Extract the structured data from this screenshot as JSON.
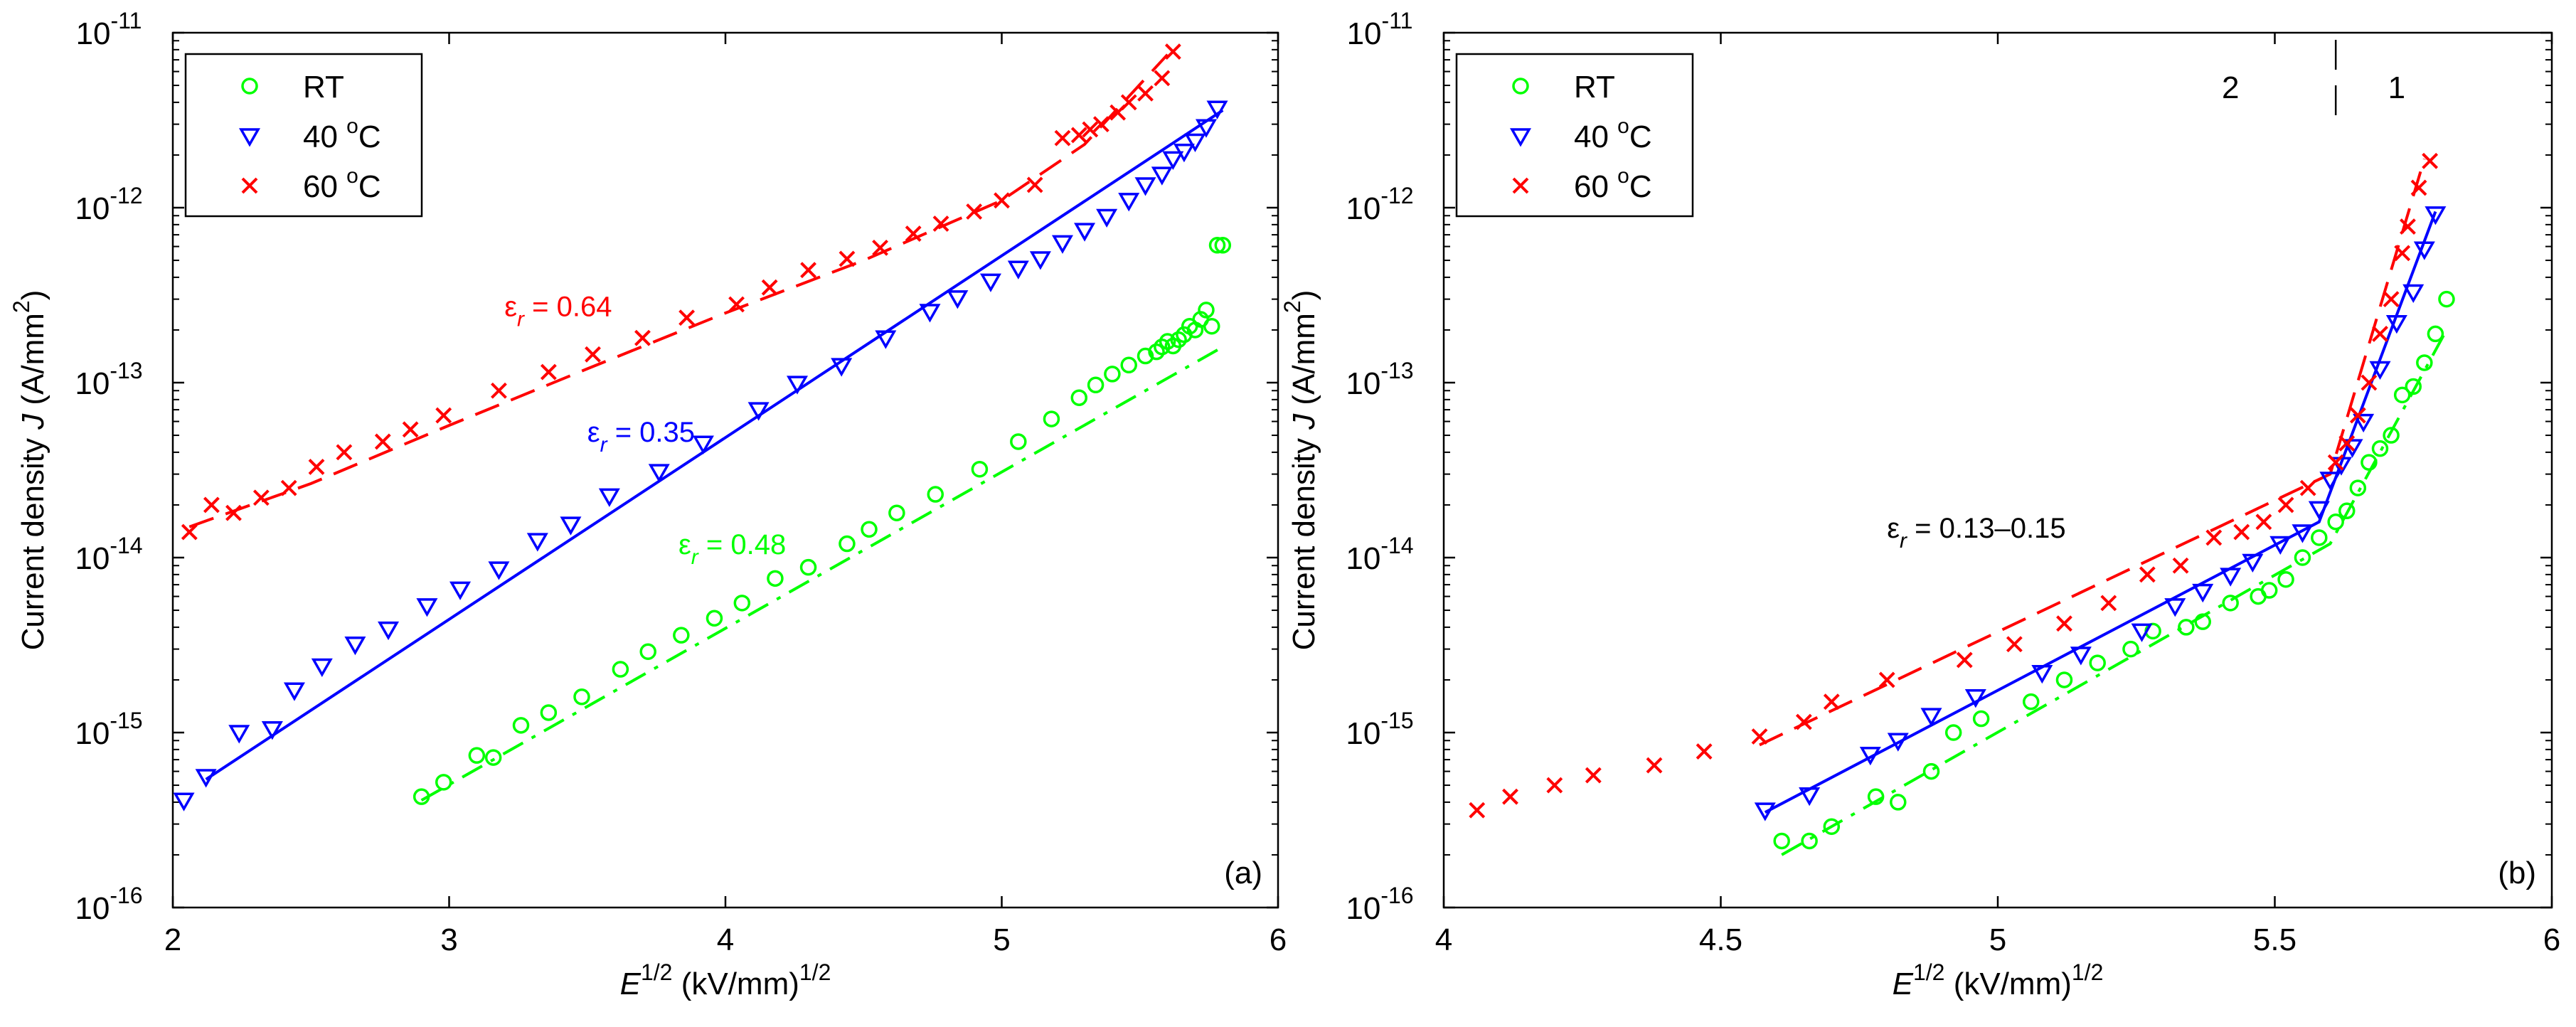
{
  "chart_data": [
    {
      "id": "a",
      "type": "scatter",
      "panel_label": "(a)",
      "xlabel": {
        "main": "E",
        "sup1": "1/2",
        "rest": " (kV/mm)",
        "sup2": "1/2"
      },
      "ylabel": {
        "main": "Current density ",
        "italic": "J",
        "rest": " (A/mm",
        "sup": "2",
        "end": ")"
      },
      "xlim": [
        2,
        6
      ],
      "ylim_log10": [
        -16,
        -11
      ],
      "x_ticks": [
        "2",
        "3",
        "4",
        "5",
        "6"
      ],
      "y_ticks": [
        {
          "base": "10",
          "exp": "-16"
        },
        {
          "base": "10",
          "exp": "-15"
        },
        {
          "base": "10",
          "exp": "-14"
        },
        {
          "base": "10",
          "exp": "-13"
        },
        {
          "base": "10",
          "exp": "-12"
        },
        {
          "base": "10",
          "exp": "-11"
        }
      ],
      "legend": {
        "position": "top-left",
        "entries": [
          {
            "label": "RT",
            "sup": "",
            "suffix": ""
          },
          {
            "label": "40 ",
            "sup": "o",
            "suffix": "C"
          },
          {
            "label": "60 ",
            "sup": "o",
            "suffix": "C"
          }
        ]
      },
      "series": [
        {
          "name": "RT",
          "color": "#00ff00",
          "marker": "circle",
          "x": [
            2.9,
            2.98,
            3.1,
            3.16,
            3.26,
            3.36,
            3.48,
            3.62,
            3.72,
            3.84,
            3.96,
            4.06,
            4.18,
            4.3,
            4.44,
            4.52,
            4.62,
            4.76,
            4.92,
            5.06,
            5.18,
            5.28,
            5.34,
            5.4,
            5.46,
            5.52,
            5.56,
            5.58,
            5.6,
            5.62,
            5.64,
            5.66,
            5.68,
            5.7,
            5.72,
            5.74,
            5.76,
            5.78,
            5.8
          ],
          "y": [
            4.3e-16,
            5.2e-16,
            7.4e-16,
            7.2e-16,
            1.1e-15,
            1.3e-15,
            1.6e-15,
            2.3e-15,
            2.9e-15,
            3.6e-15,
            4.5e-15,
            5.5e-15,
            7.6e-15,
            8.8e-15,
            1.2e-14,
            1.45e-14,
            1.8e-14,
            2.3e-14,
            3.2e-14,
            4.6e-14,
            6.2e-14,
            8.2e-14,
            9.7e-14,
            1.12e-13,
            1.26e-13,
            1.42e-13,
            1.5e-13,
            1.6e-13,
            1.72e-13,
            1.62e-13,
            1.76e-13,
            1.88e-13,
            2.1e-13,
            2e-13,
            2.3e-13,
            2.6e-13,
            2.1e-13,
            6.1e-13,
            6.1e-13
          ]
        },
        {
          "name": "40 oC",
          "color": "#0000ff",
          "marker": "triangle",
          "x": [
            2.04,
            2.12,
            2.24,
            2.36,
            2.44,
            2.54,
            2.66,
            2.78,
            2.92,
            3.04,
            3.18,
            3.32,
            3.44,
            3.58,
            3.76,
            3.92,
            4.12,
            4.26,
            4.42,
            4.58,
            4.74,
            4.84,
            4.96,
            5.06,
            5.14,
            5.22,
            5.3,
            5.38,
            5.46,
            5.52,
            5.58,
            5.62,
            5.66,
            5.7,
            5.74,
            5.78
          ],
          "y": [
            4.1e-16,
            5.6e-16,
            1e-15,
            1.05e-15,
            1.75e-15,
            2.4e-15,
            3.2e-15,
            3.9e-15,
            5.3e-15,
            6.6e-15,
            8.6e-15,
            1.25e-14,
            1.55e-14,
            2.25e-14,
            3.1e-14,
            4.5e-14,
            7e-14,
            9.9e-14,
            1.25e-13,
            1.8e-13,
            2.55e-13,
            3.05e-13,
            3.8e-13,
            4.5e-13,
            5.1e-13,
            6.3e-13,
            7.4e-13,
            8.9e-13,
            1.1e-12,
            1.35e-12,
            1.55e-12,
            1.9e-12,
            2.1e-12,
            2.4e-12,
            2.9e-12,
            3.7e-12
          ]
        },
        {
          "name": "60 oC",
          "color": "#ff0000",
          "marker": "x",
          "x": [
            2.06,
            2.14,
            2.22,
            2.32,
            2.42,
            2.52,
            2.62,
            2.76,
            2.86,
            2.98,
            3.18,
            3.36,
            3.52,
            3.7,
            3.86,
            4.04,
            4.16,
            4.3,
            4.44,
            4.56,
            4.68,
            4.78,
            4.9,
            5.0,
            5.12,
            5.22,
            5.28,
            5.32,
            5.36,
            5.42,
            5.46,
            5.52,
            5.58,
            5.62
          ],
          "y": [
            1.4e-14,
            2e-14,
            1.8e-14,
            2.2e-14,
            2.5e-14,
            3.3e-14,
            4e-14,
            4.6e-14,
            5.4e-14,
            6.5e-14,
            9e-14,
            1.15e-13,
            1.45e-13,
            1.8e-13,
            2.35e-13,
            2.8e-13,
            3.5e-13,
            4.4e-13,
            5.1e-13,
            5.9e-13,
            7.1e-13,
            8.1e-13,
            9.5e-13,
            1.1e-12,
            1.35e-12,
            2.5e-12,
            2.6e-12,
            2.8e-12,
            3e-12,
            3.5e-12,
            4e-12,
            4.5e-12,
            5.5e-12,
            7.8e-12
          ]
        }
      ],
      "fits": [
        {
          "name": "RT fit",
          "color": "#00ff00",
          "style": "dashdot",
          "x": [
            2.9,
            5.8
          ],
          "y": [
            4.1e-16,
            1.6e-13
          ]
        },
        {
          "name": "40 oC fit",
          "color": "#0000ff",
          "style": "solid",
          "x": [
            2.12,
            5.8
          ],
          "y": [
            5.4e-16,
            3.6e-12
          ]
        },
        {
          "name": "60 oC fit",
          "color": "#ff0000",
          "style": "dashed",
          "x": [
            2.06,
            2.5,
            3.0,
            3.5,
            4.0,
            4.5,
            5.0,
            5.3,
            5.6
          ],
          "y": [
            1.5e-14,
            2.65e-14,
            5.7e-14,
            1.2e-13,
            2.5e-13,
            5e-13,
            1.1e-12,
            2.3e-12,
            7.5e-12
          ]
        }
      ],
      "annotations": [
        {
          "text": "ε",
          "sub": "r",
          "value": " = 0.64",
          "color": "#ff0000",
          "x": 3.2,
          "y": 2.4e-13
        },
        {
          "text": "ε",
          "sub": "r",
          "value": " = 0.35",
          "color": "#0000ff",
          "x": 3.5,
          "y": 4.6e-14
        },
        {
          "text": "ε",
          "sub": "r",
          "value": " = 0.48",
          "color": "#00ff00",
          "x": 3.83,
          "y": 1.05e-14
        }
      ]
    },
    {
      "id": "b",
      "type": "scatter",
      "panel_label": "(b)",
      "xlabel": {
        "main": "E",
        "sup1": "1/2",
        "rest": " (kV/mm)",
        "sup2": "1/2"
      },
      "ylabel": {
        "main": "Current density ",
        "italic": "J",
        "rest": " (A/mm",
        "sup": "2",
        "end": ")"
      },
      "xlim": [
        4,
        6
      ],
      "ylim_log10": [
        -16,
        -11
      ],
      "x_ticks": [
        "4",
        "4.5",
        "5",
        "5.5",
        "6"
      ],
      "y_ticks": [
        {
          "base": "10",
          "exp": "-16"
        },
        {
          "base": "10",
          "exp": "-15"
        },
        {
          "base": "10",
          "exp": "-14"
        },
        {
          "base": "10",
          "exp": "-13"
        },
        {
          "base": "10",
          "exp": "-12"
        },
        {
          "base": "10",
          "exp": "-11"
        }
      ],
      "legend": {
        "position": "top-left",
        "entries": [
          {
            "label": "RT",
            "sup": "",
            "suffix": ""
          },
          {
            "label": "40 ",
            "sup": "o",
            "suffix": "C"
          },
          {
            "label": "60 ",
            "sup": "o",
            "suffix": "C"
          }
        ]
      },
      "region_labels": [
        {
          "text": "2",
          "x": 5.42
        },
        {
          "text": "1",
          "x": 5.72
        }
      ],
      "region_divider_x": 5.61,
      "series": [
        {
          "name": "RT",
          "color": "#00ff00",
          "marker": "circle",
          "x": [
            4.61,
            4.66,
            4.7,
            4.78,
            4.82,
            4.88,
            4.92,
            4.97,
            5.06,
            5.12,
            5.18,
            5.24,
            5.28,
            5.34,
            5.37,
            5.42,
            5.47,
            5.49,
            5.52,
            5.55,
            5.58,
            5.61,
            5.63,
            5.65,
            5.67,
            5.69,
            5.71,
            5.73,
            5.75,
            5.77,
            5.79,
            5.81
          ],
          "y": [
            2.4e-16,
            2.4e-16,
            2.9e-16,
            4.3e-16,
            4e-16,
            6e-16,
            1e-15,
            1.2e-15,
            1.5e-15,
            2e-15,
            2.5e-15,
            3e-15,
            3.8e-15,
            4e-15,
            4.3e-15,
            5.5e-15,
            6e-15,
            6.5e-15,
            7.5e-15,
            1e-14,
            1.3e-14,
            1.6e-14,
            1.85e-14,
            2.5e-14,
            3.5e-14,
            4.2e-14,
            5e-14,
            8.5e-14,
            9.5e-14,
            1.3e-13,
            1.9e-13,
            3e-13
          ]
        },
        {
          "name": "40 oC",
          "color": "#0000ff",
          "marker": "triangle",
          "x": [
            4.58,
            4.66,
            4.77,
            4.82,
            4.88,
            4.96,
            5.08,
            5.15,
            5.26,
            5.32,
            5.37,
            5.42,
            5.46,
            5.51,
            5.55,
            5.58,
            5.6,
            5.62,
            5.64,
            5.66,
            5.69,
            5.72,
            5.75,
            5.77,
            5.79
          ],
          "y": [
            3.6e-16,
            4.4e-16,
            7.5e-16,
            9e-16,
            1.25e-15,
            1.6e-15,
            2.2e-15,
            2.8e-15,
            3.8e-15,
            5.3e-15,
            6.4e-15,
            7.9e-15,
            9.5e-15,
            1.2e-14,
            1.4e-14,
            1.9e-14,
            2.8e-14,
            3.4e-14,
            4.3e-14,
            6e-14,
            1.2e-13,
            2.2e-13,
            3.3e-13,
            5.8e-13,
            9.2e-13
          ]
        },
        {
          "name": "60 oC",
          "color": "#ff0000",
          "marker": "x",
          "x": [
            4.06,
            4.12,
            4.2,
            4.27,
            4.38,
            4.47,
            4.57,
            4.65,
            4.7,
            4.8,
            4.94,
            5.03,
            5.12,
            5.2,
            5.27,
            5.33,
            5.39,
            5.44,
            5.48,
            5.52,
            5.56,
            5.61,
            5.63,
            5.65,
            5.67,
            5.69,
            5.71,
            5.73,
            5.74,
            5.76,
            5.78
          ],
          "y": [
            3.6e-16,
            4.3e-16,
            5e-16,
            5.7e-16,
            6.5e-16,
            7.8e-16,
            9.5e-16,
            1.15e-15,
            1.5e-15,
            2e-15,
            2.6e-15,
            3.2e-15,
            4.2e-15,
            5.5e-15,
            8e-15,
            9e-15,
            1.3e-14,
            1.4e-14,
            1.6e-14,
            2e-14,
            2.5e-14,
            3.5e-14,
            4.5e-14,
            6.5e-14,
            1e-13,
            1.9e-13,
            3e-13,
            5.5e-13,
            7.8e-13,
            1.3e-12,
            1.85e-12
          ]
        }
      ],
      "fits": [
        {
          "name": "RT fit",
          "color": "#00ff00",
          "style": "dashdot",
          "x": [
            4.61,
            5.6,
            5.81
          ],
          "y": [
            2e-16,
            1.2e-14,
            2e-13
          ]
        },
        {
          "name": "40 oC fit",
          "color": "#0000ff",
          "style": "solid",
          "x": [
            4.58,
            5.58,
            5.79
          ],
          "y": [
            3.5e-16,
            1.6e-14,
            9.5e-13
          ]
        },
        {
          "name": "60 oC fit",
          "color": "#ff0000",
          "style": "dashed",
          "x": [
            4.57,
            5.6,
            5.77
          ],
          "y": [
            8.5e-16,
            3e-14,
            1.9e-12
          ]
        }
      ],
      "annotations": [
        {
          "text": "ε",
          "sub": "r",
          "value": " = 0.13–0.15",
          "color": "#000000",
          "x": 4.8,
          "y": 1.3e-14
        }
      ]
    }
  ]
}
